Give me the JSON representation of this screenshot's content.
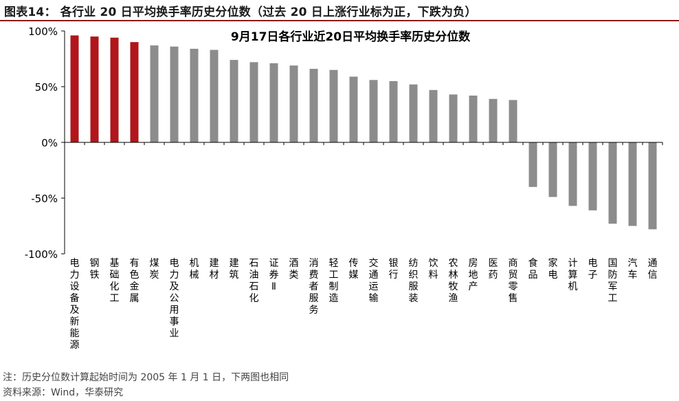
{
  "header": {
    "title": "图表14：  各行业 20 日平均换手率历史分位数（过去 20 日上涨行业标为正，下跌为负）"
  },
  "footer": {
    "note": "注：历史分位数计算起始时间为 2005 年 1 月 1 日，下两图也相同",
    "source": "资料来源：Wind，华泰研究"
  },
  "colors": {
    "up": "#b0161b",
    "other": "#8c8c8c",
    "header_rule": "#8b1a1a"
  },
  "chart_data": {
    "type": "bar",
    "title": "9月17日各行业近20日平均换手率历史分位数",
    "xlabel": "",
    "ylabel": "",
    "ylim": [
      -100,
      100
    ],
    "yticks": [
      -100,
      -50,
      0,
      50,
      100
    ],
    "ytick_labels": [
      "-100%",
      "-50%",
      "0%",
      "50%",
      "100%"
    ],
    "grid": false,
    "legend": "none",
    "categories": [
      "电力设备及新能源",
      "钢铁",
      "基础化工",
      "有色金属",
      "煤炭",
      "电力及公用事业",
      "机械",
      "建材",
      "建筑",
      "石油石化",
      "证券Ⅱ",
      "酒类",
      "消费者服务",
      "轻工制造",
      "传媒",
      "交通运输",
      "银行",
      "纺织服装",
      "饮料",
      "农林牧渔",
      "房地产",
      "医药",
      "商贸零售",
      "食品",
      "家电",
      "计算机",
      "电子",
      "国防军工",
      "汽车",
      "通信"
    ],
    "values": [
      96,
      95,
      94,
      90,
      87,
      86,
      84,
      83,
      74,
      72,
      71,
      69,
      66,
      65,
      59,
      56,
      55,
      52,
      47,
      43,
      42,
      39,
      38,
      -40,
      -49,
      -57,
      -61,
      -73,
      -75,
      -78
    ],
    "highlighted": [
      true,
      true,
      true,
      true,
      false,
      false,
      false,
      false,
      false,
      false,
      false,
      false,
      false,
      false,
      false,
      false,
      false,
      false,
      false,
      false,
      false,
      false,
      false,
      false,
      false,
      false,
      false,
      false,
      false,
      false
    ]
  }
}
